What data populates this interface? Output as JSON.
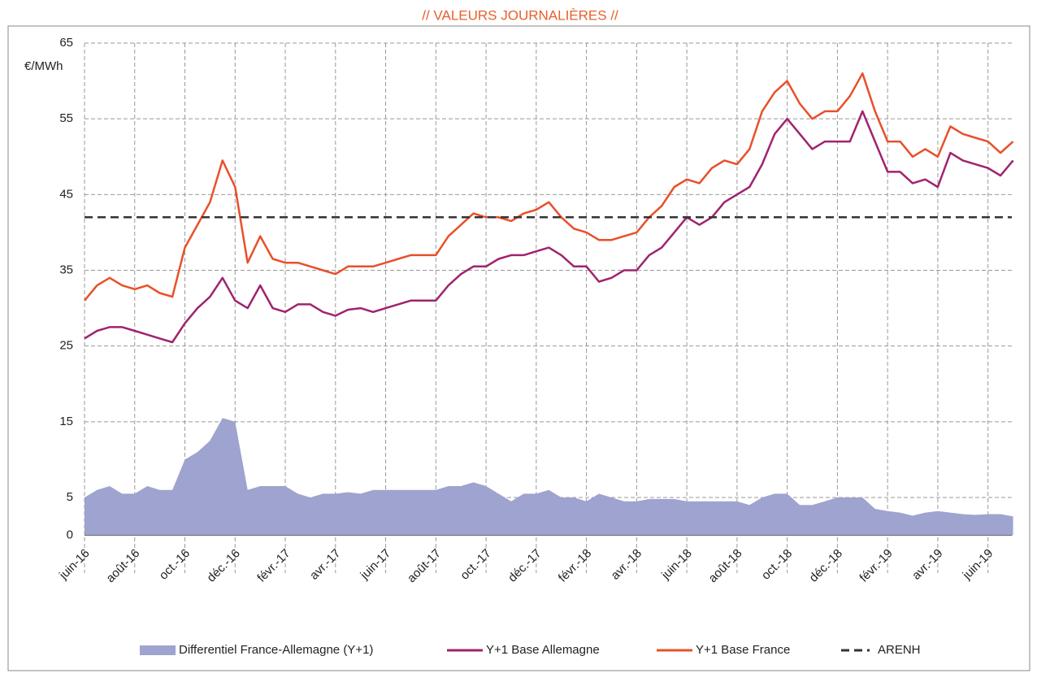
{
  "chart_data": {
    "type": "line",
    "title": "// VALEURS JOURNALIÈRES //",
    "y_label": "€/MWh",
    "categories": [
      "juin-16",
      null,
      null,
      null,
      "août-16",
      null,
      null,
      null,
      "oct.-16",
      null,
      null,
      null,
      "déc.-16",
      null,
      null,
      null,
      "févr.-17",
      null,
      null,
      null,
      "avr.-17",
      null,
      null,
      null,
      "juin-17",
      null,
      null,
      null,
      "août-17",
      null,
      null,
      null,
      "oct.-17",
      null,
      null,
      null,
      "déc.-17",
      null,
      null,
      null,
      "févr.-18",
      null,
      null,
      null,
      "avr.-18",
      null,
      null,
      null,
      "juin-18",
      null,
      null,
      null,
      "août-18",
      null,
      null,
      null,
      "oct.-18",
      null,
      null,
      null,
      "déc.-18",
      null,
      null,
      null,
      "févr.-19",
      null,
      null,
      null,
      "avr.-19",
      null,
      null,
      null,
      "juin-19",
      null,
      null
    ],
    "series": [
      {
        "name": "Differentiel France-Allemagne (Y+1)",
        "kind": "area",
        "color": "#9ea3cf",
        "values": [
          5,
          6,
          6.5,
          5.5,
          5.5,
          6.5,
          6,
          6,
          10,
          11,
          12.5,
          15.5,
          15,
          6,
          6.5,
          6.5,
          6.5,
          5.5,
          5,
          5.5,
          5.5,
          5.7,
          5.5,
          6,
          6,
          6,
          6,
          6,
          6,
          6.5,
          6.5,
          7,
          6.5,
          5.5,
          4.5,
          5.5,
          5.5,
          6,
          5,
          5,
          4.5,
          5.5,
          5,
          4.5,
          4.5,
          4.8,
          4.8,
          4.8,
          4.5,
          4.5,
          4.5,
          4.5,
          4.5,
          4,
          5,
          5.5,
          5.5,
          4,
          4,
          4.5,
          5,
          5,
          5,
          3.5,
          3.2,
          3,
          2.6,
          3,
          3.2,
          3,
          2.8,
          2.7,
          2.8,
          2.8,
          2.5
        ]
      },
      {
        "name": "Y+1 Base Allemagne",
        "kind": "line",
        "color": "#a0236e",
        "values": [
          26,
          27,
          27.5,
          27.5,
          27,
          26.5,
          26,
          25.5,
          28,
          30,
          31.5,
          34,
          31,
          30,
          33,
          30,
          29.5,
          30.5,
          30.5,
          29.5,
          29,
          29.8,
          30,
          29.5,
          30,
          30.5,
          31,
          31,
          31,
          33,
          34.5,
          35.5,
          35.5,
          36.5,
          37,
          37,
          37.5,
          38,
          37,
          35.5,
          35.5,
          33.5,
          34,
          35,
          35,
          37,
          38,
          40,
          42,
          41,
          42,
          44,
          45,
          46,
          49,
          53,
          55,
          53,
          51,
          52,
          52,
          52,
          56,
          52,
          48,
          48,
          46.5,
          47,
          46,
          50.5,
          49.5,
          49,
          48.5,
          47.5,
          49.5
        ]
      },
      {
        "name": "Y+1 Base France",
        "kind": "line",
        "color": "#e8502a",
        "values": [
          31,
          33,
          34,
          33,
          32.5,
          33,
          32,
          31.5,
          38,
          41,
          44,
          49.5,
          46,
          36,
          39.5,
          36.5,
          36,
          36,
          35.5,
          35,
          34.5,
          35.5,
          35.5,
          35.5,
          36,
          36.5,
          37,
          37,
          37,
          39.5,
          41,
          42.5,
          42,
          42,
          41.5,
          42.5,
          43,
          44,
          42,
          40.5,
          40,
          39,
          39,
          39.5,
          40,
          42,
          43.5,
          46,
          47,
          46.5,
          48.5,
          49.5,
          49,
          51,
          56,
          58.5,
          60,
          57,
          55,
          56,
          56,
          58,
          61,
          56,
          52,
          52,
          50,
          51,
          50,
          54,
          53,
          52.5,
          52,
          50.5,
          52
        ]
      }
    ],
    "reference_lines": [
      {
        "name": "ARENH",
        "value": 42,
        "color": "#333333"
      }
    ],
    "ylim": [
      0,
      65
    ],
    "yticks": [
      0,
      5,
      15,
      25,
      35,
      45,
      55,
      65
    ],
    "grid": true,
    "legend": "bottom"
  }
}
